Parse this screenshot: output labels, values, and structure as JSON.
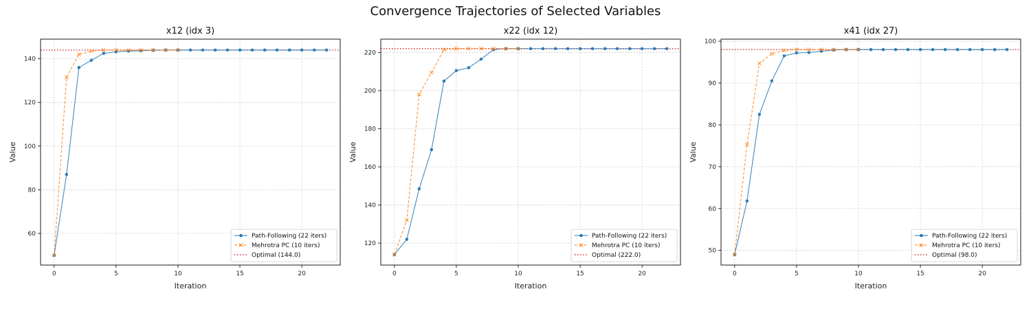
{
  "figure": {
    "title": "Convergence Trajectories of Selected Variables"
  },
  "colors": {
    "path": "#1f77b4",
    "mehrotra": "#ff7f0e",
    "optimal": "#d62728",
    "grid": "#cccccc"
  },
  "chart_data": [
    {
      "type": "line",
      "title": "x12 (idx 3)",
      "xlabel": "Iteration",
      "ylabel": "Value",
      "xlim": [
        -1.1,
        23.1
      ],
      "ylim": [
        45.5,
        149
      ],
      "xticks": [
        0,
        5,
        10,
        15,
        20
      ],
      "yticks": [
        60,
        80,
        100,
        120,
        140
      ],
      "legend_position": "lower-right",
      "series": [
        {
          "name": "Path-Following (22 iters)",
          "marker": "circle",
          "style": "solid",
          "x": [
            0,
            1,
            2,
            3,
            4,
            5,
            6,
            7,
            8,
            9,
            10,
            11,
            12,
            13,
            14,
            15,
            16,
            17,
            18,
            19,
            20,
            21,
            22
          ],
          "values": [
            50,
            87,
            136,
            139.3,
            142.5,
            143.2,
            143.5,
            143.7,
            143.9,
            144,
            144,
            144,
            144,
            144,
            144,
            144,
            144,
            144,
            144,
            144,
            144,
            144,
            144
          ]
        },
        {
          "name": "Mehrotra PC (10 iters)",
          "marker": "x",
          "style": "dashed",
          "x": [
            0,
            1,
            2,
            3,
            4,
            5,
            6,
            7,
            8,
            9,
            10
          ],
          "values": [
            50,
            131.5,
            142,
            143.5,
            144,
            144,
            144,
            144,
            144,
            144,
            144
          ]
        }
      ],
      "reference": {
        "name": "Optimal (144.0)",
        "value": 144.0
      }
    },
    {
      "type": "line",
      "title": "x22 (idx 12)",
      "xlabel": "Iteration",
      "ylabel": "Value",
      "xlim": [
        -1.1,
        23.1
      ],
      "ylim": [
        108.5,
        227
      ],
      "xticks": [
        0,
        5,
        10,
        15,
        20
      ],
      "yticks": [
        120,
        140,
        160,
        180,
        200,
        220
      ],
      "legend_position": "lower-right",
      "series": [
        {
          "name": "Path-Following (22 iters)",
          "marker": "circle",
          "style": "solid",
          "x": [
            0,
            1,
            2,
            3,
            4,
            5,
            6,
            7,
            8,
            9,
            10,
            11,
            12,
            13,
            14,
            15,
            16,
            17,
            18,
            19,
            20,
            21,
            22
          ],
          "values": [
            114,
            122,
            148.5,
            169,
            205,
            210.5,
            212,
            216.5,
            221.5,
            222,
            222,
            222,
            222,
            222,
            222,
            222,
            222,
            222,
            222,
            222,
            222,
            222,
            222
          ]
        },
        {
          "name": "Mehrotra PC (10 iters)",
          "marker": "x",
          "style": "dashed",
          "x": [
            0,
            1,
            2,
            3,
            4,
            5,
            6,
            7,
            8,
            9,
            10
          ],
          "values": [
            114,
            132,
            198,
            209.5,
            221.5,
            222,
            222,
            222,
            222,
            222,
            222
          ]
        }
      ],
      "reference": {
        "name": "Optimal (222.0)",
        "value": 222.0
      }
    },
    {
      "type": "line",
      "title": "x41 (idx 27)",
      "xlabel": "Iteration",
      "ylabel": "Value",
      "xlim": [
        -1.1,
        23.1
      ],
      "ylim": [
        46.5,
        100.5
      ],
      "xticks": [
        0,
        5,
        10,
        15,
        20
      ],
      "yticks": [
        50,
        60,
        70,
        80,
        90,
        100
      ],
      "legend_position": "lower-right",
      "series": [
        {
          "name": "Path-Following (22 iters)",
          "marker": "circle",
          "style": "solid",
          "x": [
            0,
            1,
            2,
            3,
            4,
            5,
            6,
            7,
            8,
            9,
            10,
            11,
            12,
            13,
            14,
            15,
            16,
            17,
            18,
            19,
            20,
            21,
            22
          ],
          "values": [
            49,
            61.8,
            82.5,
            90.5,
            96.5,
            97.2,
            97.3,
            97.6,
            97.9,
            98,
            98,
            98,
            98,
            98,
            98,
            98,
            98,
            98,
            98,
            98,
            98,
            98,
            98
          ]
        },
        {
          "name": "Mehrotra PC (10 iters)",
          "marker": "x",
          "style": "dashed",
          "x": [
            0,
            1,
            2,
            3,
            4,
            5,
            6,
            7,
            8,
            9,
            10
          ],
          "values": [
            49,
            75.3,
            94.7,
            97,
            97.8,
            98,
            98,
            98,
            98,
            98,
            98
          ]
        }
      ],
      "reference": {
        "name": "Optimal (98.0)",
        "value": 98.0
      }
    }
  ]
}
